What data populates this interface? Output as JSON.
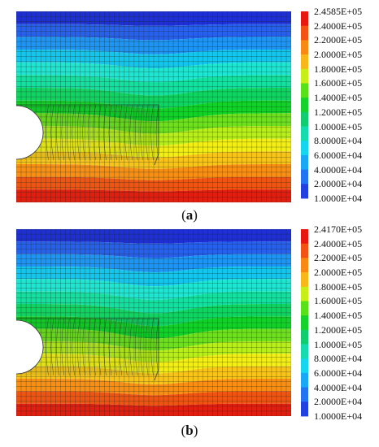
{
  "colors": {
    "band_top_to_bottom": [
      "#1e2fd6",
      "#2860ee",
      "#1e94f4",
      "#14c6ee",
      "#1ee6d2",
      "#14e0a0",
      "#10d462",
      "#12d22a",
      "#6ee020",
      "#b8ee1c",
      "#f2ee16",
      "#f8c41a",
      "#f88e14",
      "#f05412",
      "#e21e10"
    ],
    "legend_top_to_bottom": [
      "#e8180e",
      "#f25212",
      "#f88a14",
      "#f8b81a",
      "#c8ee18",
      "#58e018",
      "#16d22c",
      "#12cc70",
      "#14dcae",
      "#14d6ee",
      "#18a8f6",
      "#2274f2",
      "#2040e0"
    ],
    "mesh_line": "#1a2a1a"
  },
  "panels": [
    {
      "caption_letter": "a",
      "legend": [
        "2.4585E+05",
        "2.4000E+05",
        "2.2000E+05",
        "2.0000E+05",
        "1.8000E+05",
        "1.6000E+05",
        "1.4000E+05",
        "1.2000E+05",
        "1.0000E+05",
        "8.0000E+04",
        "6.0000E+04",
        "4.0000E+04",
        "2.0000E+04",
        "1.0000E+04"
      ]
    },
    {
      "caption_letter": "b",
      "legend": [
        "2.4170E+05",
        "2.4000E+05",
        "2.2000E+05",
        "2.0000E+05",
        "1.8000E+05",
        "1.6000E+05",
        "1.4000E+05",
        "1.2000E+05",
        "1.0000E+05",
        "8.0000E+04",
        "6.0000E+04",
        "4.0000E+04",
        "2.0000E+04",
        "1.0000E+04"
      ]
    }
  ]
}
